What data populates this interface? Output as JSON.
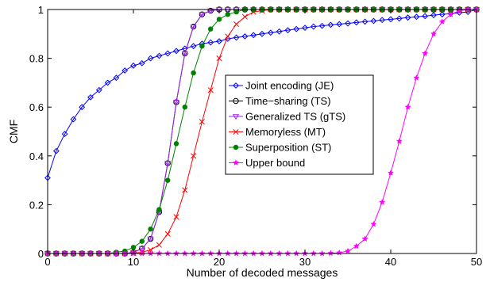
{
  "chart_data": {
    "type": "line",
    "title": "",
    "xlabel": "Number of decoded messages",
    "ylabel": "CMF",
    "xlim": [
      0,
      50
    ],
    "ylim": [
      0,
      1
    ],
    "xticks": [
      "0",
      "10",
      "20",
      "30",
      "40",
      "50"
    ],
    "yticks": [
      "0",
      "0.2",
      "0.4",
      "0.6",
      "0.8",
      "1"
    ],
    "grid": false,
    "legend_position": "center",
    "x": [
      0,
      1,
      2,
      3,
      4,
      5,
      6,
      7,
      8,
      9,
      10,
      11,
      12,
      13,
      14,
      15,
      16,
      17,
      18,
      19,
      20,
      21,
      22,
      23,
      24,
      25,
      26,
      27,
      28,
      29,
      30,
      31,
      32,
      33,
      34,
      35,
      36,
      37,
      38,
      39,
      40,
      41,
      42,
      43,
      44,
      45,
      46,
      47,
      48,
      49,
      50
    ],
    "series": [
      {
        "name": "Joint encoding (JE)",
        "color": "#0000ff",
        "marker": "diamond",
        "values": [
          0.31,
          0.42,
          0.49,
          0.55,
          0.6,
          0.64,
          0.67,
          0.7,
          0.72,
          0.75,
          0.77,
          0.78,
          0.8,
          0.81,
          0.82,
          0.83,
          0.84,
          0.85,
          0.86,
          0.865,
          0.87,
          0.88,
          0.885,
          0.89,
          0.895,
          0.9,
          0.905,
          0.91,
          0.915,
          0.92,
          0.925,
          0.93,
          0.933,
          0.937,
          0.94,
          0.943,
          0.947,
          0.95,
          0.953,
          0.957,
          0.96,
          0.963,
          0.967,
          0.97,
          0.973,
          0.977,
          0.98,
          0.983,
          0.987,
          0.99,
          1.0
        ]
      },
      {
        "name": "Time−sharing (TS)",
        "color": "#000000",
        "marker": "circle",
        "values": [
          0,
          0,
          0,
          0,
          0,
          0,
          0,
          0,
          0,
          0,
          0.005,
          0.02,
          0.06,
          0.17,
          0.37,
          0.62,
          0.82,
          0.93,
          0.98,
          0.995,
          1,
          1,
          1,
          1,
          1,
          1,
          1,
          1,
          1,
          1,
          1,
          1,
          1,
          1,
          1,
          1,
          1,
          1,
          1,
          1,
          1,
          1,
          1,
          1,
          1,
          1,
          1,
          1,
          1,
          1,
          1
        ]
      },
      {
        "name": "Generalized TS (gTS)",
        "color": "#a020f0",
        "marker": "triangle-down",
        "values": [
          0,
          0,
          0,
          0,
          0,
          0,
          0,
          0,
          0,
          0,
          0.005,
          0.02,
          0.06,
          0.17,
          0.37,
          0.62,
          0.82,
          0.93,
          0.98,
          0.995,
          1,
          1,
          1,
          1,
          1,
          1,
          1,
          1,
          1,
          1,
          1,
          1,
          1,
          1,
          1,
          1,
          1,
          1,
          1,
          1,
          1,
          1,
          1,
          1,
          1,
          1,
          1,
          1,
          1,
          1,
          1
        ]
      },
      {
        "name": "Memoryless (MT)",
        "color": "#ff0000",
        "marker": "x",
        "values": [
          0,
          0,
          0,
          0,
          0,
          0,
          0,
          0,
          0,
          0,
          0.002,
          0.005,
          0.015,
          0.035,
          0.08,
          0.15,
          0.26,
          0.4,
          0.54,
          0.67,
          0.8,
          0.89,
          0.94,
          0.97,
          0.99,
          0.995,
          1,
          1,
          1,
          1,
          1,
          1,
          1,
          1,
          1,
          1,
          1,
          1,
          1,
          1,
          1,
          1,
          1,
          1,
          1,
          1,
          1,
          1,
          1,
          1,
          1
        ]
      },
      {
        "name": "Superposition (ST)",
        "color": "#008000",
        "marker": "asterisk",
        "values": [
          0,
          0,
          0,
          0,
          0,
          0,
          0,
          0,
          0.005,
          0.01,
          0.025,
          0.05,
          0.1,
          0.18,
          0.3,
          0.45,
          0.6,
          0.74,
          0.85,
          0.92,
          0.96,
          0.98,
          0.99,
          1,
          1,
          1,
          1,
          1,
          1,
          1,
          1,
          1,
          1,
          1,
          1,
          1,
          1,
          1,
          1,
          1,
          1,
          1,
          1,
          1,
          1,
          1,
          1,
          1,
          1,
          1,
          1
        ]
      },
      {
        "name": "Upper bound",
        "color": "#ff00ff",
        "marker": "star",
        "values": [
          0,
          0,
          0,
          0,
          0,
          0,
          0,
          0,
          0,
          0,
          0,
          0,
          0,
          0,
          0,
          0,
          0,
          0,
          0,
          0,
          0,
          0,
          0,
          0,
          0,
          0,
          0,
          0,
          0,
          0,
          0,
          0,
          0,
          0.001,
          0.003,
          0.01,
          0.03,
          0.06,
          0.12,
          0.21,
          0.33,
          0.46,
          0.6,
          0.72,
          0.82,
          0.9,
          0.95,
          0.98,
          0.995,
          1,
          1
        ]
      }
    ]
  }
}
